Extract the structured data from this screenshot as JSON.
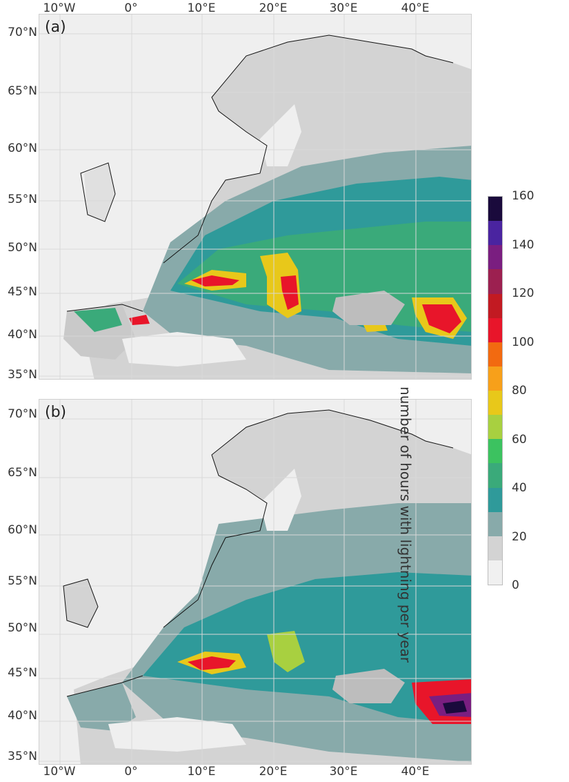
{
  "panels": [
    {
      "label": "(a)"
    },
    {
      "label": "(b)"
    }
  ],
  "latitude_labels": [
    "70°N",
    "65°N",
    "60°N",
    "55°N",
    "50°N",
    "45°N",
    "40°N",
    "35°N"
  ],
  "longitude_labels": [
    "10°W",
    "0°",
    "10°E",
    "20°E",
    "30°E",
    "40°E"
  ],
  "colorbar": {
    "title": "number of hours with lightning per year",
    "ticks": [
      "160",
      "140",
      "120",
      "100",
      "80",
      "60",
      "40",
      "20",
      "0"
    ],
    "colors": [
      "#f0f0f0",
      "#d3d3d3",
      "#88aaaa",
      "#2f9a9a",
      "#3aaa7a",
      "#3cc260",
      "#a8d040",
      "#e8c81a",
      "#f7a01a",
      "#f26a10",
      "#e8152a",
      "#c21a22",
      "#9c2050",
      "#7a1e80",
      "#4a24a0",
      "#1a0a3c"
    ]
  },
  "ocean_color": "#efefef",
  "land_color": "#d3d3d3"
}
